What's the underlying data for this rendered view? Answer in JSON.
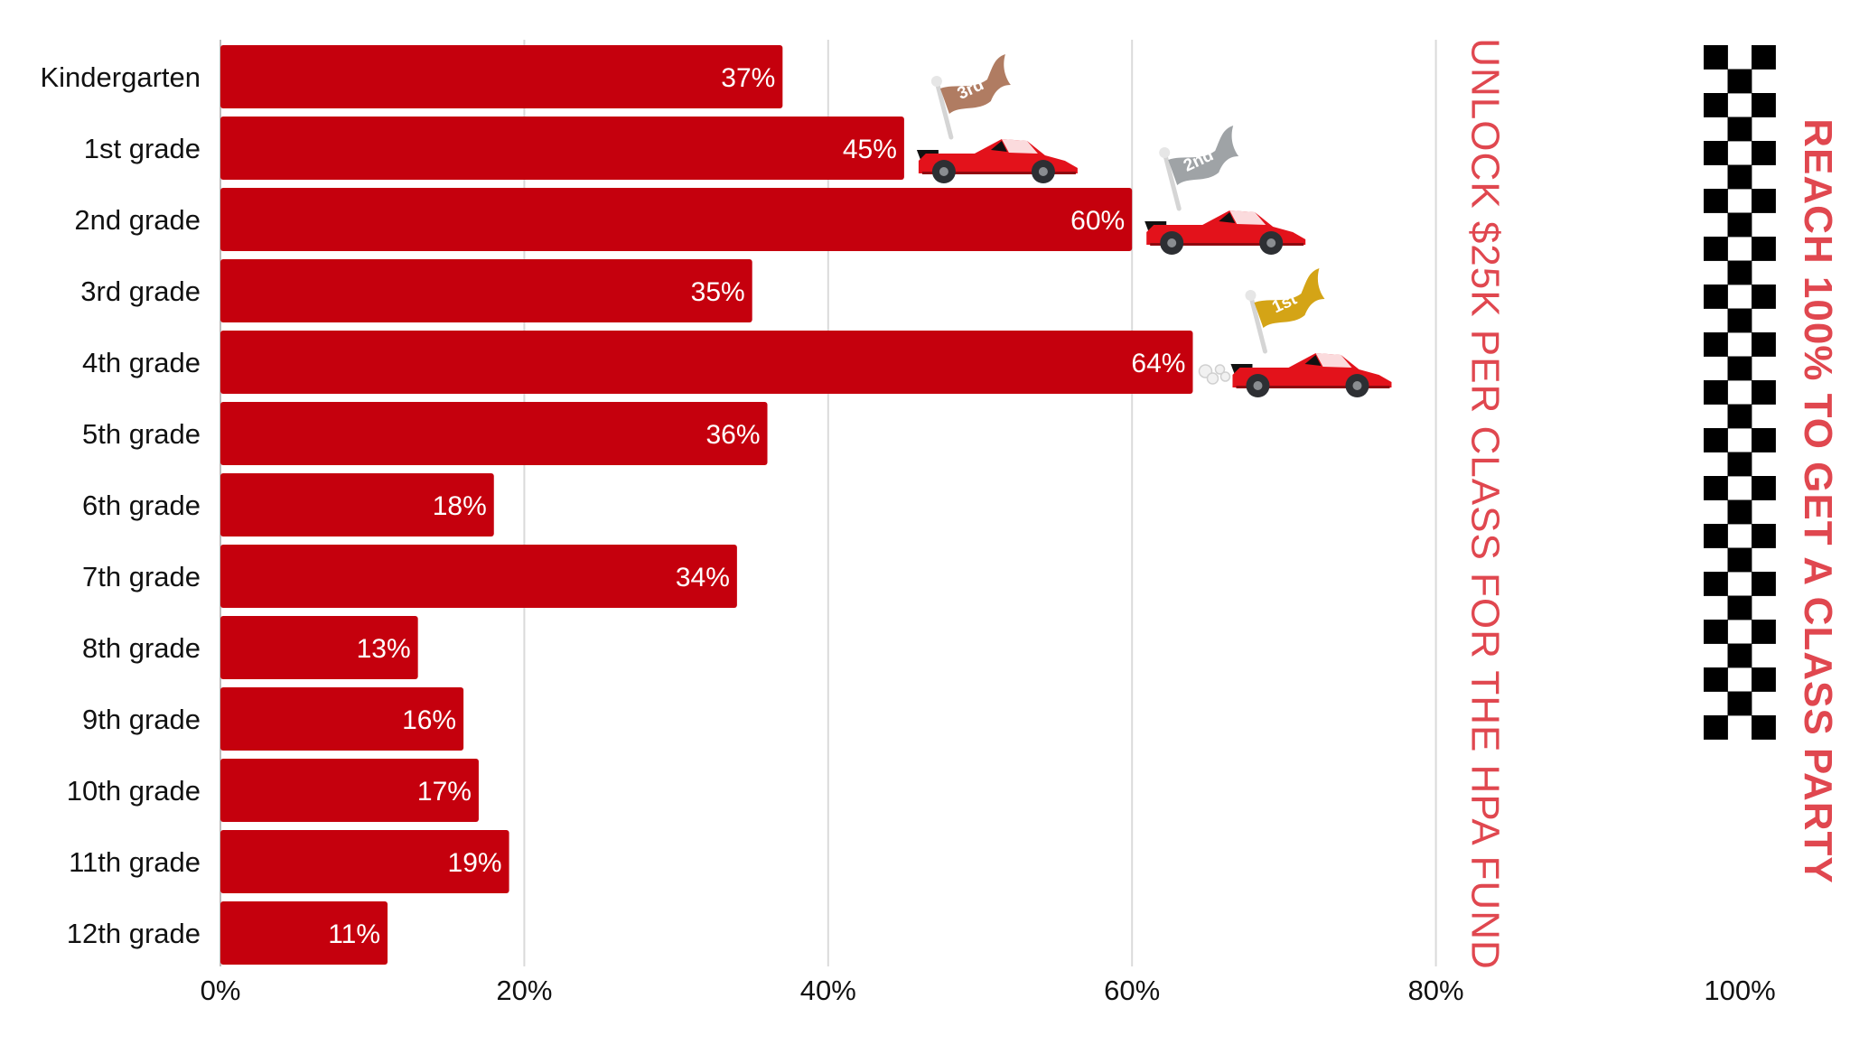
{
  "chart_data": {
    "type": "bar",
    "orientation": "horizontal",
    "categories": [
      "Kindergarten",
      "1st grade",
      "2nd grade",
      "3rd grade",
      "4th grade",
      "5th grade",
      "6th grade",
      "7th grade",
      "8th grade",
      "9th grade",
      "10th grade",
      "11th grade",
      "12th grade"
    ],
    "values": [
      37,
      45,
      60,
      35,
      64,
      36,
      18,
      34,
      13,
      16,
      17,
      19,
      11
    ],
    "value_labels": [
      "37%",
      "45%",
      "60%",
      "35%",
      "64%",
      "36%",
      "18%",
      "34%",
      "13%",
      "16%",
      "17%",
      "19%",
      "11%"
    ],
    "xlim": [
      0,
      100
    ],
    "x_ticks": [
      0,
      20,
      40,
      60,
      80,
      100
    ],
    "x_tick_labels": [
      "0%",
      "20%",
      "40%",
      "60%",
      "80%",
      "100%"
    ],
    "grid": "vertical",
    "title": "",
    "xlabel": "",
    "ylabel": "",
    "bar_color": "#c5000d",
    "annotations": [
      {
        "text": "UNLOCK $25K PER CLASS FOR THE HPA FUND",
        "at": 80,
        "color": "#e0474f",
        "style": "vertical"
      },
      {
        "text": "REACH 100% TO GET A CLASS PARTY",
        "at": 100,
        "color": "#e0474f",
        "style": "vertical-bold"
      }
    ],
    "podium": [
      {
        "rank": "1st",
        "category": "4th grade",
        "flag_color": "#d4a416"
      },
      {
        "rank": "2nd",
        "category": "2nd grade",
        "flag_color": "#9fa3a6"
      },
      {
        "rank": "3rd",
        "category": "1st grade",
        "flag_color": "#b07c62"
      }
    ]
  }
}
